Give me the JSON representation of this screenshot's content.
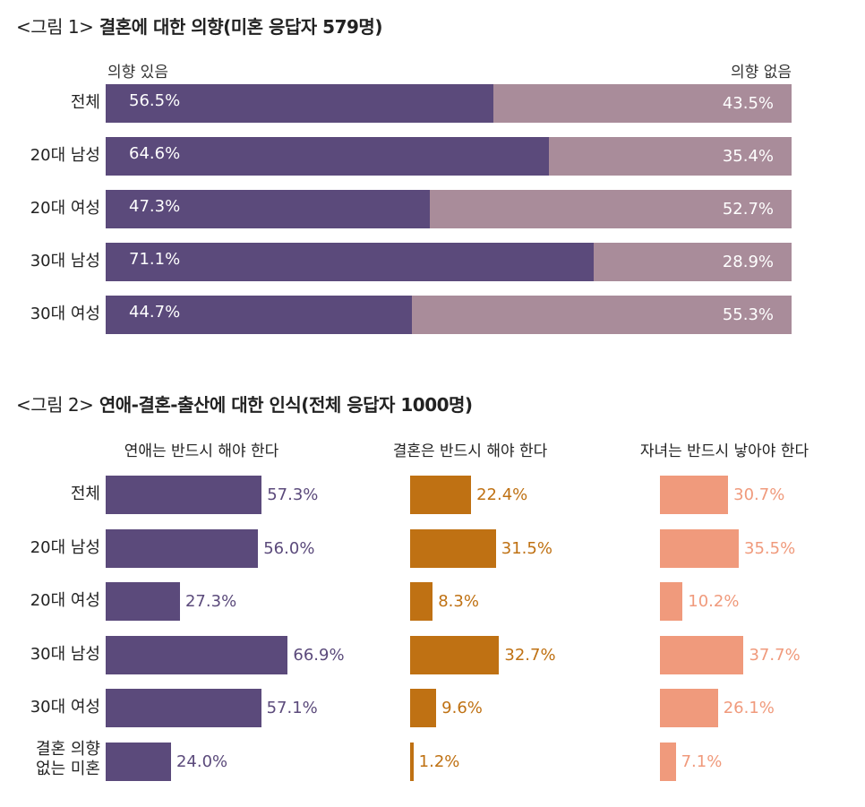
{
  "colors": {
    "yes": "#5b4a7b",
    "no": "#a98c9a",
    "love": "#5b4a7b",
    "marriage": "#bf7113",
    "children": "#f09a7c"
  },
  "figure1": {
    "title_prefix": "<그림 1>",
    "title_main": "결혼에 대한 의향(미혼 응답자 579명)"
  },
  "figure2": {
    "title_prefix": "<그림 2>",
    "title_main": "연애-결혼-출산에 대한 인식(전체 응답자 1000명)"
  },
  "chart_data": [
    {
      "type": "bar",
      "orientation": "horizontal",
      "stacked": true,
      "title": "<그림 1> 결혼에 대한 의향(미혼 응답자 579명)",
      "categories": [
        "전체",
        "20대 남성",
        "20대 여성",
        "30대 남성",
        "30대 여성"
      ],
      "series": [
        {
          "name": "의향 있음",
          "values": [
            56.5,
            64.6,
            47.3,
            71.1,
            44.7
          ],
          "labels": [
            "56.5%",
            "64.6%",
            "47.3%",
            "71.1%",
            "44.7%"
          ]
        },
        {
          "name": "의향 없음",
          "values": [
            43.5,
            35.4,
            52.7,
            28.9,
            55.3
          ],
          "labels": [
            "43.5%",
            "35.4%",
            "52.7%",
            "28.9%",
            "55.3%"
          ]
        }
      ],
      "xlim": [
        0,
        100
      ]
    },
    {
      "type": "bar",
      "orientation": "horizontal",
      "title": "<그림 2> 연애-결혼-출산에 대한 인식(전체 응답자 1000명)",
      "categories": [
        "전체",
        "20대 남성",
        "20대 여성",
        "30대 남성",
        "30대 여성",
        "결혼 의향 없는 미혼"
      ],
      "category_lines": [
        [
          "전체"
        ],
        [
          "20대 남성"
        ],
        [
          "20대 여성"
        ],
        [
          "30대 남성"
        ],
        [
          "30대 여성"
        ],
        [
          "결혼 의향",
          "없는 미혼"
        ]
      ],
      "series": [
        {
          "name": "연애는 반드시 해야 한다",
          "values": [
            57.3,
            56.0,
            27.3,
            66.9,
            57.1,
            24.0
          ],
          "labels": [
            "57.3%",
            "56.0%",
            "27.3%",
            "66.9%",
            "57.1%",
            "24.0%"
          ]
        },
        {
          "name": "결혼은 반드시 해야 한다",
          "values": [
            22.4,
            31.5,
            8.3,
            32.7,
            9.6,
            1.2
          ],
          "labels": [
            "22.4%",
            "31.5%",
            "8.3%",
            "32.7%",
            "9.6%",
            "1.2%"
          ]
        },
        {
          "name": "자녀는 반드시 낳아야 한다",
          "values": [
            30.7,
            35.5,
            10.2,
            37.7,
            26.1,
            7.1
          ],
          "labels": [
            "30.7%",
            "35.5%",
            "10.2%",
            "37.7%",
            "26.1%",
            "7.1%"
          ]
        }
      ]
    }
  ]
}
